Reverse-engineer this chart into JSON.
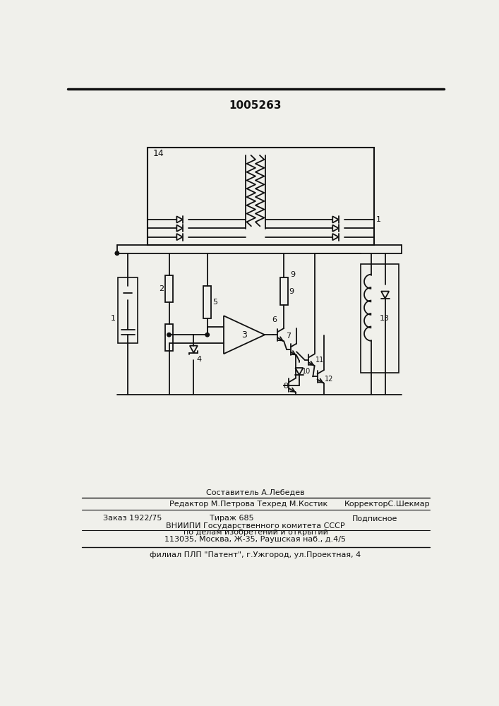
{
  "patent_number": "1005263",
  "bg": "#f0f0eb",
  "lc": "#111111",
  "footer_line1": "Составитель А.Лебедев",
  "footer_line2a": "Редактор М.Петрова Техред М.Костик",
  "footer_line2b": "КорректорС.Шекмар",
  "footer_line3a": "Заказ 1922/75",
  "footer_line3b": "Тираж 685",
  "footer_line3c": "Подписное",
  "footer_line4": "ВНИИПИ Государственного комитета СССР",
  "footer_line5": "по делам изобретений и открытий",
  "footer_line6": "113035, Москва, Ж-35, Раушская наб., д.4/5",
  "footer_line7": "филиал ПЛП \"Патент\", г.Ужгород, ул.Проектная, 4"
}
